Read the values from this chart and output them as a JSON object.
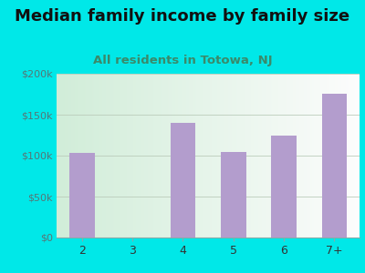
{
  "title": "Median family income by family size",
  "subtitle": "All residents in Totowa, NJ",
  "categories": [
    "2",
    "3",
    "4",
    "5",
    "6",
    "7+"
  ],
  "values": [
    103000,
    null,
    140000,
    105000,
    125000,
    175000
  ],
  "bar_color": "#b39dcd",
  "title_fontsize": 13,
  "subtitle_fontsize": 9.5,
  "subtitle_color": "#3a8a6a",
  "title_color": "#111111",
  "bg_color": "#00e8e8",
  "tick_label_color": "#557777",
  "xlabel_color": "#333333",
  "ymax": 200000,
  "yticks": [
    0,
    50000,
    100000,
    150000,
    200000
  ],
  "ytick_labels": [
    "$0",
    "$50k",
    "$100k",
    "$150k",
    "$200k"
  ],
  "grid_color": "#bbccbb",
  "plot_bg_left": "#d0eedc",
  "plot_bg_right": "#f5faf5"
}
